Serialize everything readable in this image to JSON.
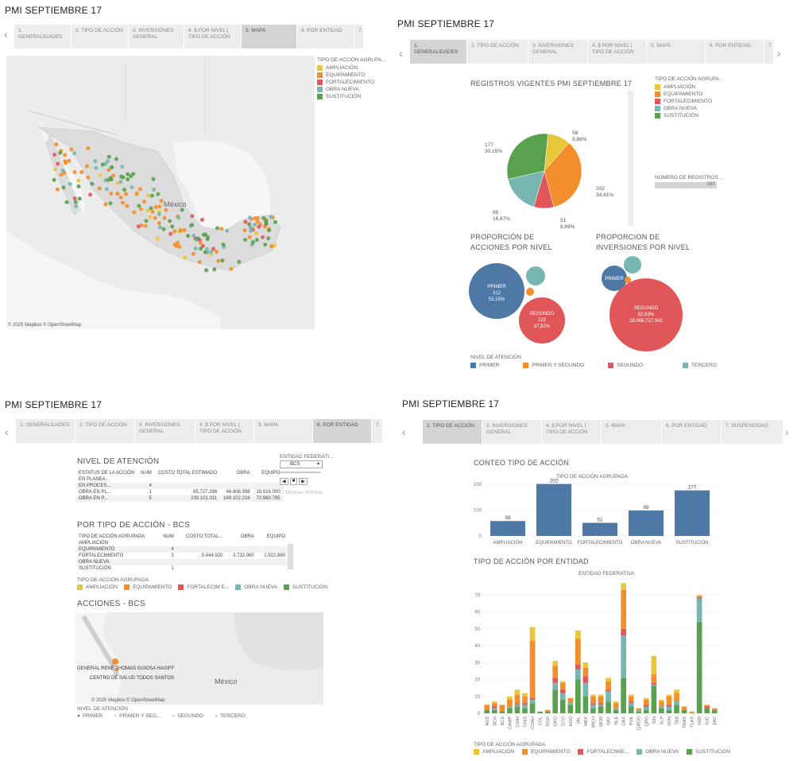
{
  "colors": {
    "ampliacion": "#e8c73a",
    "equipamiento": "#f28e2b",
    "fortalecimiento": "#e15759",
    "obra_nueva": "#76b7b2",
    "sustitucion": "#59a14f",
    "primer": "#4e79a7",
    "bar": "#4e79a7"
  },
  "panel_map": {
    "title": "PMI SEPTIEMBRE 17",
    "tabs": [
      "1. GENERALIDADES",
      "2. TIPO DE ACCIÓN",
      "3. INVERSIONES GENERAL",
      "4. $ POR NIVEL | TIPO DE ACCIÓN",
      "5. MAPA",
      "6. POR ENTIDAD",
      "7."
    ],
    "legend_title": "TIPO DE ACCIÓN AGRUPA...",
    "legend": [
      "AMPLIACIÓN",
      "EQUIPAMIENTO",
      "FORTALECIMIENTO",
      "OBRA NUEVA",
      "SUSTITUCIÓN"
    ],
    "country_label": "México",
    "attribution": "© 2025 Mapbox © OpenStreetMap"
  },
  "panel_gen": {
    "title": "PMI SEPTIEMBRE 17",
    "tabs": [
      "1. GENERALIDADES",
      "2. TIPO DE ACCIÓN",
      "3. INVERSIONES GENERAL",
      "4. $ POR NIVEL | TIPO DE ACCIÓN",
      "5. MAPA",
      "6. POR ENTIDAD",
      "7."
    ],
    "pie_title": "REGISTROS VIGENTES PMI SEPTIEMBRE 17",
    "pie_labels": [
      {
        "count": "58",
        "pct": "9,88%"
      },
      {
        "count": "202",
        "pct": "34,41%"
      },
      {
        "count": "51",
        "pct": "8,69%"
      },
      {
        "count": "99",
        "pct": "16,87%"
      },
      {
        "count": "177",
        "pct": "30,15%"
      }
    ],
    "legend_title": "TIPO DE ACCIÓN AGRUPA...",
    "legend": [
      "AMPLIACIÓN",
      "EQUIPAMIENTO",
      "FORTALECIMIENTO",
      "OBRA NUEVA",
      "SUSTITUCIÓN"
    ],
    "num_reg_label": "NÚMERO DE REGISTROS ...",
    "num_reg_value": "587",
    "bubble1_title": "PROPORCIÓN DE ACCIONES POR NIVEL",
    "bubble1_primer": {
      "name": "PRIMER",
      "count": "312",
      "pct": "53,15%"
    },
    "bubble1_segundo": {
      "name": "SEGUNDO",
      "count": "222",
      "pct": "37,82%"
    },
    "bubble2_title": "PROPORCION DE INVERSIONES POR NIVEL",
    "bubble2_primer": "PRIMER",
    "bubble2_segundo": {
      "name": "SEGUNDO",
      "pct": "82,63%",
      "amount": "28.968.727.942"
    },
    "nivel_title": "NIVEL DE ATENCIÓN",
    "nivel_legend": [
      "PRIMER",
      "PRIMER Y SEGUNDO",
      "SEGUNDO",
      "TERCERO"
    ]
  },
  "panel_ent": {
    "title": "PMI SEPTIEMBRE 17",
    "tabs": [
      "1. GENERALIDADES",
      "2. TIPO DE ACCIÓN",
      "3. INVERSIONES GENERAL",
      "4. $ POR NIVEL | TIPO DE ACCIÓN",
      "5. MAPA",
      "6. POR ENTIDAD",
      "7."
    ],
    "nivel_title": "NIVEL DE ATENCIÓN",
    "table1_headers": [
      "ESTATUS DE LA ACCIÓN",
      "NUM",
      "COSTO TOTAL ESTIMADO",
      "OBRA",
      "EQUIPO"
    ],
    "table1_rows": [
      [
        "EN PLANEA...",
        "",
        "",
        "",
        ""
      ],
      [
        "EN PROCES...",
        "4",
        "",
        "",
        ""
      ],
      [
        "OBRA EN PL...",
        "1",
        "65.727.398",
        "46.806.398",
        "18.916.000"
      ],
      [
        "OBRA EN P...",
        "5",
        "233.101.011",
        "160.102.216",
        "72.960.795"
      ]
    ],
    "entidad_label": "ENTIDAD FEDERATI...",
    "entidad_value": "BCS",
    "mostrar_label": "Mostrar historial",
    "tipo_title": "POR TIPO DE ACCIÓN - BCS",
    "table2_headers": [
      "TIPO DE ACCIÓN AGRUPADA",
      "NUM",
      "COSTO TOTAL...",
      "OBRA",
      "EQUIPO"
    ],
    "table2_rows": [
      [
        "AMPLIACIÓN",
        "",
        "",
        "",
        ""
      ],
      [
        "EQUIPAMIENTO",
        "4",
        "",
        "",
        ""
      ],
      [
        "FORTALECIMIENTO",
        "2",
        "5.644.920",
        "3.732.060",
        "1.922.860"
      ],
      [
        "OBRA NUEVA",
        "",
        "",
        "",
        ""
      ],
      [
        "SUSTITUCIÓN",
        "1",
        "",
        "",
        ""
      ]
    ],
    "legend_title": "TIPO DE ACCIÓN AGRUPADA",
    "legend": [
      "AMPLIACIÓN",
      "EQUIPAMIENTO",
      "FORTALECIM E...",
      "OBRA NUEVA",
      "SUSTITUCIÓN"
    ],
    "acciones_title": "ACCIONES - BCS",
    "map_point1": "GENERAL RENÉ THOMAS GUIOSA HAGIFF",
    "map_point2": "CENTRO DE SALUD TODOS SANTOS",
    "country_label": "México",
    "attribution": "© 2025 Mapbox © OpenStreetMap",
    "nivel_legend": [
      "PRIMER",
      "PRIMER Y SEG...",
      "SEGUNDO",
      "TERCERO"
    ]
  },
  "panel_tipo": {
    "title": "PMI SEPTIEMBRE 17",
    "tabs": [
      "2. TIPO DE ACCIÓN",
      "3. INVERSIONES GENERAL",
      "4. $ POR NIVEL | TIPO DE ACCIÓN",
      "5. MAPA",
      "6. POR ENTIDAD",
      "7. SUSPENDIDAS"
    ],
    "bar_title": "CONTEO TIPO DE ACCIÓN",
    "bar_subtitle": "TIPO DE ACCIÓN AGRUPADA",
    "stack_title": "TIPO DE ACCIÓN POR ENTIDAD",
    "stack_subtitle": "ENTIDAD FEDERATIVA",
    "legend_title": "TIPO DE ACCIÓN AGRUPADA",
    "legend": [
      "AMPLIACIÓN",
      "EQUIPAMIENTO",
      "FORTALECIMIE...",
      "OBRA NUEVA",
      "SUSTITUCIÓN"
    ]
  },
  "chart_data": [
    {
      "type": "pie",
      "title": "REGISTROS VIGENTES PMI SEPTIEMBRE 17",
      "categories": [
        "AMPLIACIÓN",
        "EQUIPAMIENTO",
        "FORTALECIMIENTO",
        "OBRA NUEVA",
        "SUSTITUCIÓN"
      ],
      "values": [
        58,
        202,
        51,
        99,
        177
      ]
    },
    {
      "type": "bar",
      "title": "CONTEO TIPO DE ACCIÓN",
      "xlabel": "TIPO DE ACCIÓN AGRUPADA",
      "categories": [
        "AMPLIACIÓN",
        "EQUIPAMIENTO",
        "FORTALECIMIENTO",
        "OBRA NUEVA",
        "SUSTITUCIÓN"
      ],
      "values": [
        58,
        202,
        51,
        99,
        177
      ],
      "yticks": [
        0,
        100,
        200
      ],
      "ylim": [
        0,
        210
      ]
    },
    {
      "type": "bar",
      "stacked": true,
      "title": "TIPO DE ACCIÓN POR ENTIDAD",
      "xlabel": "ENTIDAD FEDERATIVA",
      "categories": [
        "AGS",
        "BCN",
        "BCS",
        "CAMP",
        "CHIH",
        "CHIS",
        "COAH",
        "COL",
        "DGO",
        "GRO",
        "GTO",
        "HGO",
        "JAL",
        "MEX",
        "MICH",
        "MOR",
        "NAY",
        "NLE",
        "OAX",
        "PUE",
        "QROO",
        "QRO",
        "SIN",
        "SLP",
        "SON",
        "TAB",
        "TAMS",
        "TLAX",
        "VER",
        "YUC",
        "ZAC"
      ],
      "yticks": [
        0,
        10,
        20,
        30,
        40,
        50,
        60,
        70
      ],
      "ylim": [
        0,
        80
      ],
      "series": [
        {
          "name": "SUSTITUCIÓN",
          "values": [
            2,
            2,
            1,
            3,
            4,
            3,
            6,
            1,
            1,
            14,
            8,
            5,
            20,
            10,
            3,
            4,
            7,
            2,
            21,
            4,
            1,
            2,
            16,
            3,
            2,
            5,
            2,
            0,
            54,
            3,
            2
          ]
        },
        {
          "name": "OBRA NUEVA",
          "values": [
            0,
            1,
            0,
            1,
            1,
            2,
            2,
            0,
            0,
            4,
            4,
            1,
            6,
            8,
            2,
            1,
            6,
            1,
            25,
            2,
            1,
            2,
            1,
            1,
            2,
            2,
            0,
            0,
            14,
            0,
            0
          ]
        },
        {
          "name": "FORTALECIMIENTO",
          "values": [
            0,
            1,
            0,
            0,
            1,
            1,
            1,
            0,
            0,
            3,
            2,
            0,
            3,
            4,
            1,
            1,
            1,
            0,
            4,
            1,
            0,
            1,
            1,
            0,
            1,
            0,
            0,
            0,
            1,
            1,
            0
          ]
        },
        {
          "name": "EQUIPAMIENTO",
          "values": [
            3,
            2,
            4,
            4,
            5,
            4,
            34,
            0,
            1,
            7,
            4,
            3,
            15,
            5,
            4,
            4,
            5,
            3,
            23,
            3,
            1,
            3,
            5,
            3,
            5,
            5,
            2,
            1,
            0,
            1,
            1
          ]
        },
        {
          "name": "AMPLIACIÓN",
          "values": [
            0,
            1,
            0,
            2,
            3,
            2,
            8,
            0,
            0,
            3,
            1,
            0,
            5,
            3,
            1,
            1,
            2,
            1,
            4,
            1,
            0,
            1,
            11,
            1,
            1,
            2,
            0,
            0,
            1,
            0,
            0
          ]
        }
      ]
    }
  ]
}
